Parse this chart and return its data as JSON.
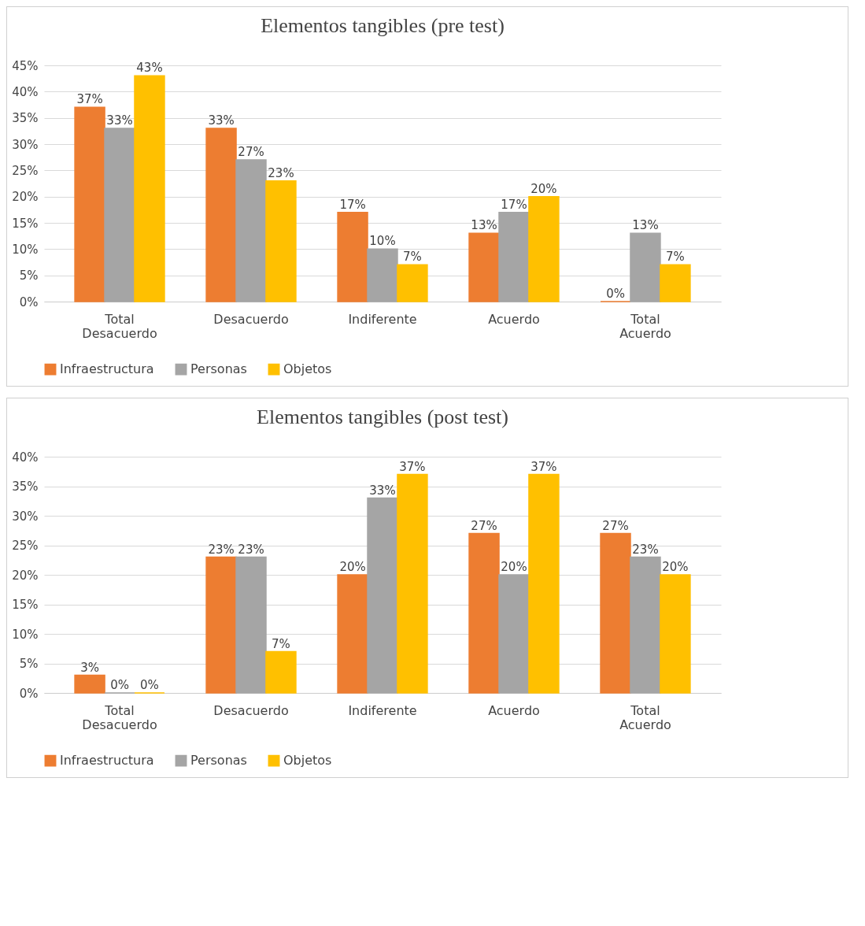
{
  "chart_data": [
    {
      "type": "bar",
      "title": "Elementos tangibles (pre test)",
      "categories": [
        "Total Desacuerdo",
        "Desacuerdo",
        "Indiferente",
        "Acuerdo",
        "Total Acuerdo"
      ],
      "series": [
        {
          "name": "Infraestructura",
          "color": "#ed7d31",
          "values": [
            37,
            33,
            17,
            13,
            0
          ],
          "value_labels": [
            "37%",
            "33%",
            "17%",
            "13%",
            "0%"
          ]
        },
        {
          "name": "Personas",
          "color": "#a5a5a5",
          "values": [
            33,
            27,
            10,
            17,
            13
          ],
          "value_labels": [
            "33%",
            "27%",
            "10%",
            "17%",
            "13%"
          ]
        },
        {
          "name": "Objetos",
          "color": "#ffc000",
          "values": [
            43,
            23,
            7,
            20,
            7
          ],
          "value_labels": [
            "43%",
            "23%",
            "7%",
            "20%",
            "7%"
          ]
        }
      ],
      "ylim": [
        0,
        45
      ],
      "yticks": [
        {
          "value": 0,
          "label": "0%"
        },
        {
          "value": 5,
          "label": "5%"
        },
        {
          "value": 10,
          "label": "10%"
        },
        {
          "value": 15,
          "label": "15%"
        },
        {
          "value": 20,
          "label": "20%"
        },
        {
          "value": 25,
          "label": "25%"
        },
        {
          "value": 30,
          "label": "30%"
        },
        {
          "value": 35,
          "label": "35%"
        },
        {
          "value": 40,
          "label": "40%"
        },
        {
          "value": 45,
          "label": "45%"
        }
      ],
      "grid": "y",
      "legend": "bottom"
    },
    {
      "type": "bar",
      "title": "Elementos tangibles (post test)",
      "categories": [
        "Total Desacuerdo",
        "Desacuerdo",
        "Indiferente",
        "Acuerdo",
        "Total Acuerdo"
      ],
      "series": [
        {
          "name": "Infraestructura",
          "color": "#ed7d31",
          "values": [
            3,
            23,
            20,
            27,
            27
          ],
          "value_labels": [
            "3%",
            "23%",
            "20%",
            "27%",
            "27%"
          ]
        },
        {
          "name": "Personas",
          "color": "#a5a5a5",
          "values": [
            0,
            23,
            33,
            20,
            23
          ],
          "value_labels": [
            "0%",
            "23%",
            "33%",
            "20%",
            "23%"
          ]
        },
        {
          "name": "Objetos",
          "color": "#ffc000",
          "values": [
            0,
            7,
            37,
            37,
            20
          ],
          "value_labels": [
            "0%",
            "7%",
            "37%",
            "37%",
            "20%"
          ]
        }
      ],
      "ylim": [
        0,
        40
      ],
      "yticks": [
        {
          "value": 0,
          "label": "0%"
        },
        {
          "value": 5,
          "label": "5%"
        },
        {
          "value": 10,
          "label": "10%"
        },
        {
          "value": 15,
          "label": "15%"
        },
        {
          "value": 20,
          "label": "20%"
        },
        {
          "value": 25,
          "label": "25%"
        },
        {
          "value": 30,
          "label": "30%"
        },
        {
          "value": 35,
          "label": "35%"
        },
        {
          "value": 40,
          "label": "40%"
        }
      ],
      "grid": "y",
      "legend": "bottom"
    }
  ]
}
